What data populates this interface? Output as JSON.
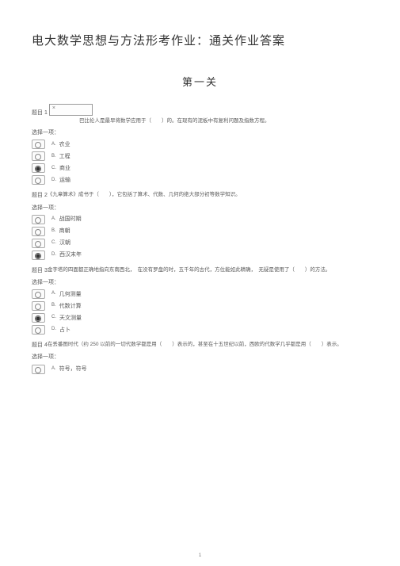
{
  "doc_title": "电大数学思想与方法形考作业：通关作业答案",
  "section_title": "第一关",
  "choose_label": "选择一项：",
  "q_prefix": "题目",
  "page_number": "1",
  "option_letters": [
    "A.",
    "B.",
    "C.",
    "D."
  ],
  "questions": [
    {
      "num": "1",
      "has_image_box": true,
      "text": "巴比伦人是最早将数学应用于（　　）的。在现有的泥板中有复利问题及指数方程。",
      "options": [
        "农业",
        "工程",
        "商业",
        "运输"
      ],
      "checked": 2
    },
    {
      "num": "2",
      "has_image_box": false,
      "text": "《九章算术》成书于（　　），它包括了算术、代数、几何的绝大部分初等数学知识。",
      "options": [
        "战国时期",
        "商朝",
        "汉朝",
        "西汉末年"
      ],
      "checked": 3
    },
    {
      "num": "3",
      "has_image_box": false,
      "text": "金字塔的四面都正确地指向东南西北，　在没有罗盘的时，五千年的古代，方位能如此精确，　无疑是使用了（　　）的方法。",
      "options": [
        "几何测量",
        "代数计算",
        "天文测量",
        "占卜"
      ],
      "checked": 2
    },
    {
      "num": "4",
      "has_image_box": false,
      "text": "在丢番图时代（约 250 以前的一切代数学都是用（　　）表示的，甚至在十五世纪以前，西欧的代数学几乎都是用（　　）表示。",
      "options": [
        "符号，符号"
      ],
      "checked": -1,
      "truncated": true
    }
  ]
}
